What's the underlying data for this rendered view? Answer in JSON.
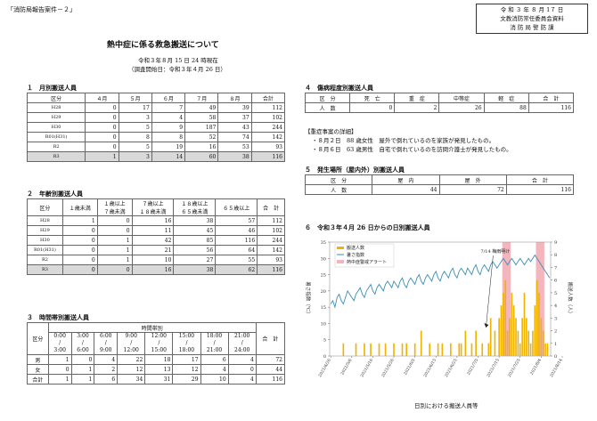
{
  "doc_ref": "「消防局報告案件－２」",
  "stamp": {
    "date": "令 和 ３ 年 ８ 月 1７ 日",
    "committee": "文教消防常任委員会資料",
    "dept": "消 防 局 警 防 課"
  },
  "title": "熱中症に係る救急搬送について",
  "as_of": "令和３年８月 15 日 24 時現在",
  "survey_start": "（調査開始日：令和３年４月 26 日）",
  "monthly": {
    "heading": "１　月別搬送人員",
    "columns": [
      "区分",
      "４月",
      "５月",
      "６月",
      "７月",
      "８月",
      "合計"
    ],
    "rows": [
      [
        "H28",
        "0",
        "17",
        "7",
        "49",
        "39",
        "112"
      ],
      [
        "H29",
        "0",
        "3",
        "4",
        "58",
        "37",
        "102"
      ],
      [
        "H30",
        "0",
        "5",
        "9",
        "187",
        "43",
        "244"
      ],
      [
        "R01(H31)",
        "0",
        "8",
        "8",
        "52",
        "74",
        "142"
      ],
      [
        "R2",
        "0",
        "5",
        "19",
        "16",
        "53",
        "93"
      ],
      [
        "R3",
        "1",
        "3",
        "14",
        "60",
        "38",
        "116"
      ]
    ]
  },
  "age": {
    "heading": "２　年齢別搬送人員",
    "columns": [
      "区分",
      "１歳未満",
      "１歳以上\n７歳未満",
      "７歳以上\n１８歳未満",
      "１８歳以上\n６５歳未満",
      "６５歳以上",
      "合　計"
    ],
    "rows": [
      [
        "H28",
        "1",
        "0",
        "16",
        "38",
        "57",
        "112"
      ],
      [
        "H29",
        "0",
        "0",
        "11",
        "45",
        "46",
        "102"
      ],
      [
        "H30",
        "0",
        "1",
        "42",
        "85",
        "116",
        "244"
      ],
      [
        "R01(H31)",
        "0",
        "1",
        "21",
        "56",
        "64",
        "142"
      ],
      [
        "R2",
        "0",
        "1",
        "10",
        "27",
        "55",
        "93"
      ],
      [
        "R3",
        "0",
        "0",
        "16",
        "38",
        "62",
        "116"
      ]
    ]
  },
  "hour": {
    "heading": "３　時間帯別搬送人員",
    "group_label": "時間帯別",
    "kubun": "区分",
    "total_label": "合　計",
    "slots": [
      [
        "0:00",
        "/",
        "3:00"
      ],
      [
        "3:00",
        "/",
        "6:00"
      ],
      [
        "6:00",
        "/",
        "9:00"
      ],
      [
        "9:00",
        "/",
        "12:00"
      ],
      [
        "12:00",
        "/",
        "15:00"
      ],
      [
        "15:00",
        "/",
        "18:00"
      ],
      [
        "18:00",
        "/",
        "21:00"
      ],
      [
        "21:00",
        "/",
        "24:00"
      ]
    ],
    "rows": [
      [
        "男",
        "1",
        "0",
        "4",
        "22",
        "18",
        "17",
        "6",
        "4",
        "72"
      ],
      [
        "女",
        "0",
        "1",
        "2",
        "12",
        "13",
        "12",
        "4",
        "0",
        "44"
      ],
      [
        "合計",
        "1",
        "1",
        "6",
        "34",
        "31",
        "29",
        "10",
        "4",
        "116"
      ]
    ]
  },
  "severity": {
    "heading": "４　傷病程度別搬送人員",
    "columns": [
      "区　分",
      "死　亡",
      "重　症",
      "中等症",
      "軽　症",
      "合　計"
    ],
    "row": [
      "人　数",
      "0",
      "2",
      "26",
      "88",
      "116"
    ]
  },
  "notes": {
    "heading": "【重症事案の詳細】",
    "items": [
      "・８月２日　88 歳女性　屋外で倒れているのを家族が発見したもの。",
      "・８月６日　63 歳男性　自宅で倒れているのを訪問介護士が発見したもの。"
    ]
  },
  "place": {
    "heading": "５　発生場所（屋内外）別搬送人員",
    "columns": [
      "区　分",
      "屋　内",
      "屋　外",
      "合　計"
    ],
    "row": [
      "人　数",
      "44",
      "72",
      "116"
    ]
  },
  "chart_section": {
    "heading": "６　令和３年４月 26 日からの日別搬送人員",
    "caption": "日別における搬送人員等"
  },
  "chart_data": {
    "type": "bar",
    "legend": [
      "搬送人数",
      "暑さ指数",
      "熱中症警戒アラート"
    ],
    "left_axis_label": "暑さ指数（℃）",
    "right_axis_label": "搬送人数（人）",
    "left_ylim": [
      0,
      35
    ],
    "right_ylim": [
      0,
      9
    ],
    "left_ticks": [
      "0",
      "5",
      "10",
      "15",
      "20",
      "25",
      "30",
      "35"
    ],
    "right_ticks": [
      "0",
      "1",
      "2",
      "3",
      "4",
      "5",
      "6",
      "7",
      "8",
      "9"
    ],
    "annotation": "7/14 梅雨明け",
    "x_tick_labels": [
      "2021/4/26",
      "2021/5/6",
      "2021/5/16",
      "2021/5/26",
      "2021/6/5",
      "2021/6/15",
      "2021/6/25",
      "2021/7/5",
      "2021/7/15",
      "2021/7/25",
      "2021/8/4",
      "2021/8/14"
    ],
    "alert_periods": [
      [
        82,
        85
      ],
      [
        98,
        101
      ]
    ],
    "wbgt": [
      16,
      17,
      15,
      18,
      19,
      17,
      16,
      18,
      20,
      19,
      18,
      17,
      19,
      20,
      21,
      19,
      18,
      20,
      21,
      22,
      20,
      19,
      21,
      22,
      21,
      20,
      22,
      23,
      22,
      21,
      23,
      22,
      21,
      23,
      24,
      22,
      21,
      23,
      24,
      23,
      22,
      24,
      25,
      23,
      22,
      24,
      25,
      24,
      23,
      25,
      26,
      24,
      23,
      25,
      26,
      25,
      24,
      26,
      27,
      25,
      24,
      26,
      27,
      26,
      25,
      27,
      26,
      25,
      27,
      28,
      26,
      25,
      27,
      28,
      27,
      26,
      28,
      29,
      28,
      27,
      28,
      29,
      30,
      29,
      28,
      29,
      30,
      29,
      28,
      29,
      30,
      29,
      28,
      29,
      30,
      29,
      30,
      31,
      30,
      29,
      28,
      27,
      26,
      25,
      24
    ],
    "counts": [
      0,
      0,
      0,
      0,
      0,
      0,
      1,
      0,
      0,
      0,
      0,
      0,
      1,
      0,
      0,
      0,
      1,
      0,
      0,
      1,
      0,
      0,
      0,
      1,
      0,
      0,
      1,
      0,
      0,
      0,
      1,
      0,
      0,
      0,
      1,
      0,
      1,
      0,
      0,
      0,
      1,
      0,
      0,
      2,
      0,
      0,
      0,
      1,
      0,
      0,
      0,
      1,
      0,
      1,
      0,
      0,
      0,
      1,
      0,
      0,
      0,
      1,
      1,
      0,
      2,
      0,
      0,
      1,
      0,
      2,
      0,
      0,
      1,
      0,
      0,
      1,
      3,
      0,
      2,
      0,
      3,
      4,
      5,
      6,
      2,
      3,
      5,
      4,
      3,
      2,
      1,
      3,
      5,
      3,
      2,
      1,
      2,
      4,
      6,
      5,
      3,
      2,
      1,
      1,
      0
    ]
  }
}
